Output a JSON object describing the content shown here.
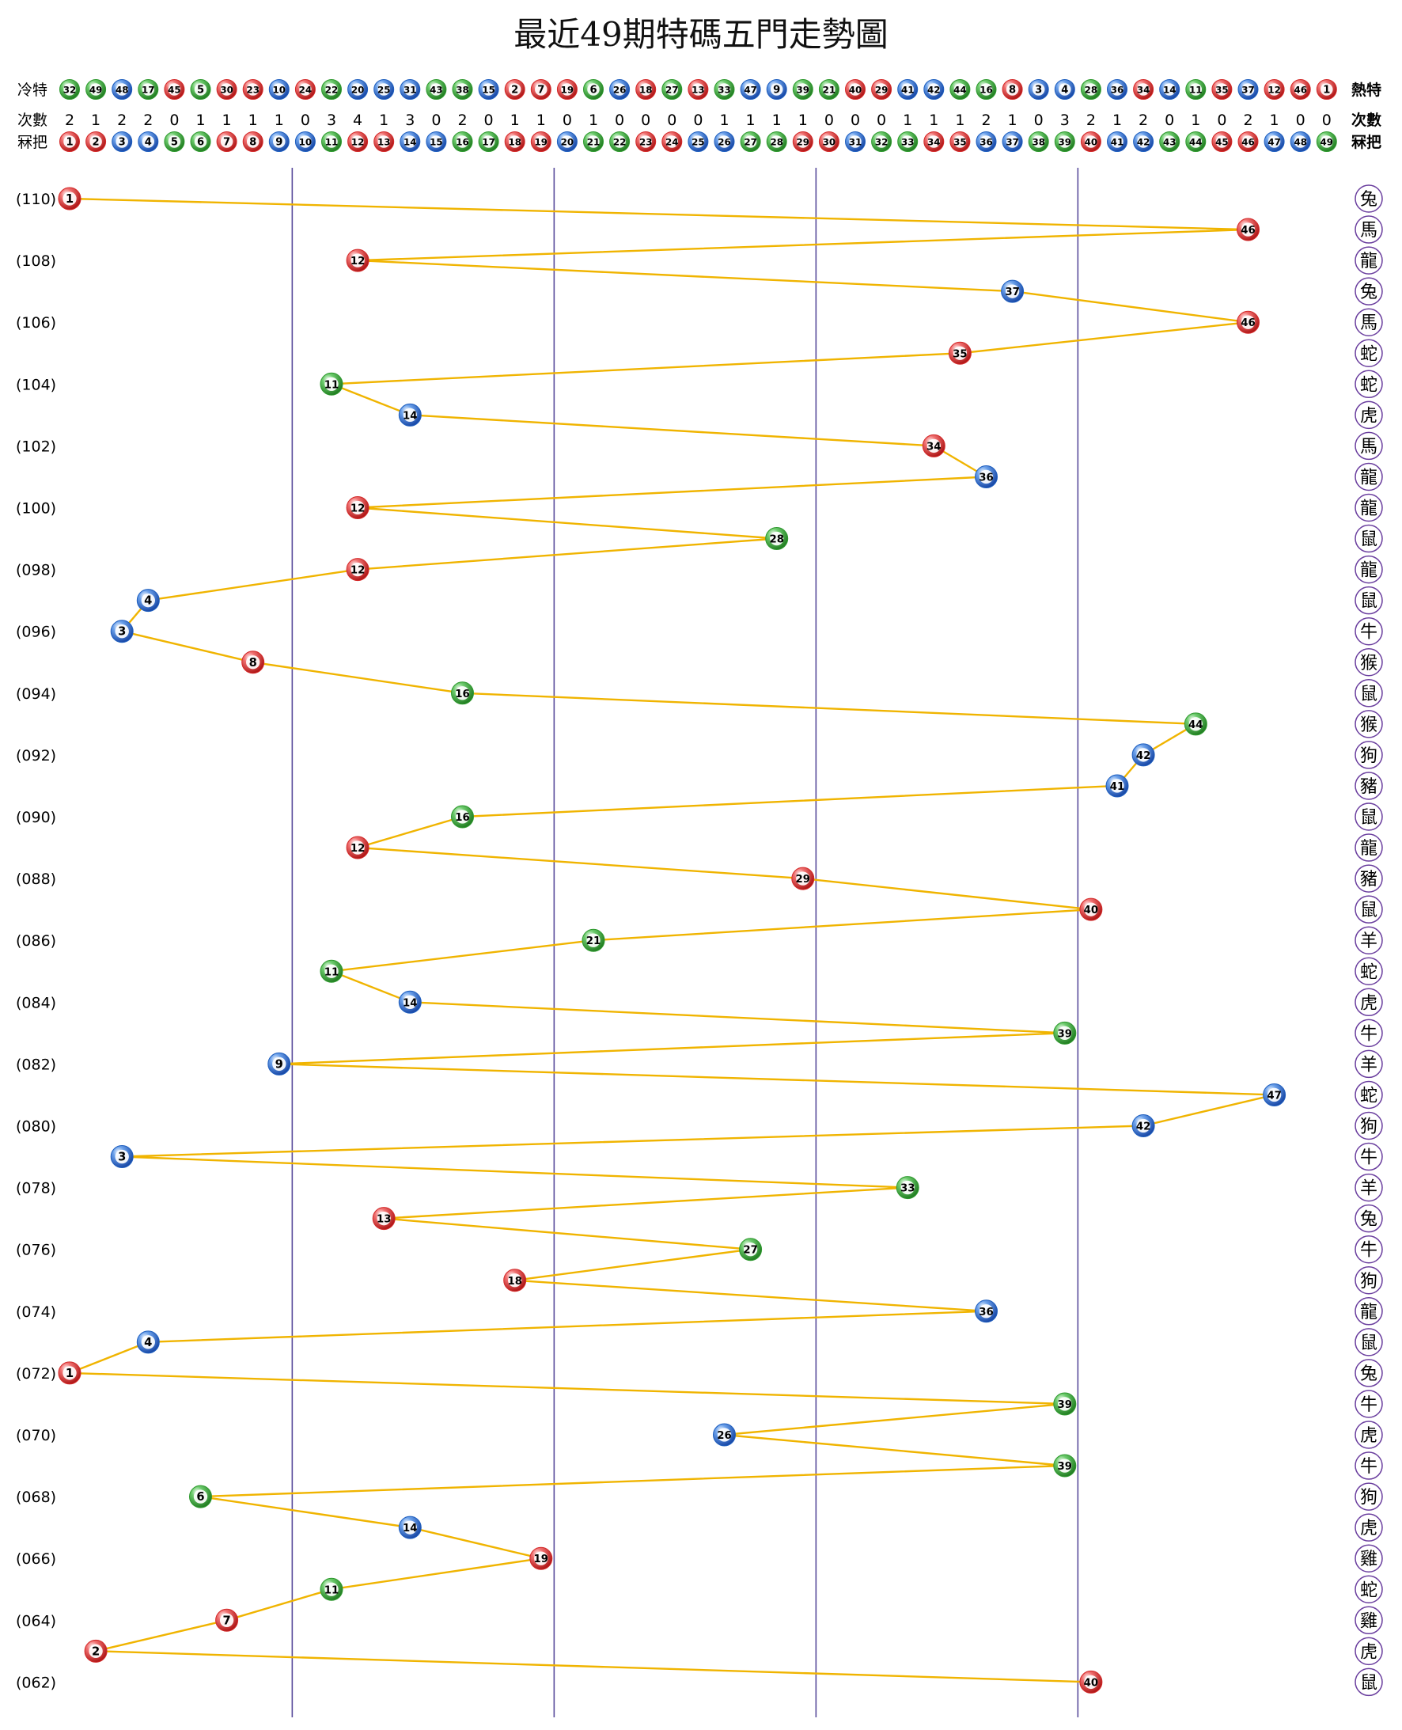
{
  "chart_data": {
    "type": "line",
    "title": "最近49期特碼五門走勢圖",
    "row_labels": {
      "cold_left": "冷特",
      "hot_right": "熱特",
      "count_left": "次數",
      "count_right": "次數",
      "number_left": "冧把",
      "number_right": "冧把"
    },
    "cold_hot_order": [
      32,
      49,
      48,
      17,
      45,
      5,
      30,
      23,
      10,
      24,
      22,
      20,
      25,
      31,
      43,
      38,
      15,
      2,
      7,
      19,
      6,
      26,
      18,
      27,
      13,
      33,
      47,
      9,
      39,
      21,
      40,
      29,
      41,
      42,
      44,
      16,
      8,
      3,
      4,
      28,
      36,
      34,
      14,
      11,
      35,
      37,
      12,
      46,
      1
    ],
    "counts": [
      2,
      1,
      2,
      2,
      0,
      1,
      1,
      1,
      1,
      0,
      3,
      4,
      1,
      3,
      0,
      2,
      0,
      1,
      1,
      0,
      1,
      0,
      0,
      0,
      0,
      1,
      1,
      1,
      1,
      0,
      0,
      0,
      1,
      1,
      1,
      2,
      1,
      0,
      3,
      2,
      1,
      2,
      0,
      1,
      0,
      2,
      1,
      0,
      0
    ],
    "numbers": [
      1,
      2,
      3,
      4,
      5,
      6,
      7,
      8,
      9,
      10,
      11,
      12,
      13,
      14,
      15,
      16,
      17,
      18,
      19,
      20,
      21,
      22,
      23,
      24,
      25,
      26,
      27,
      28,
      29,
      30,
      31,
      32,
      33,
      34,
      35,
      36,
      37,
      38,
      39,
      40,
      41,
      42,
      43,
      44,
      45,
      46,
      47,
      48,
      49
    ],
    "ball_colors": {
      "red": "#d42a2a",
      "blue": "#1f5fbf",
      "green": "#2f9a2f"
    },
    "color_groups": {
      "red": [
        1,
        2,
        7,
        8,
        12,
        13,
        18,
        19,
        23,
        24,
        29,
        30,
        34,
        35,
        40,
        45,
        46
      ],
      "blue": [
        3,
        4,
        9,
        10,
        14,
        15,
        20,
        25,
        26,
        31,
        36,
        37,
        41,
        42,
        47,
        48
      ],
      "green": [
        5,
        6,
        11,
        16,
        17,
        21,
        22,
        27,
        28,
        32,
        33,
        38,
        39,
        43,
        44,
        49
      ]
    },
    "gate_boundaries": [
      9.5,
      19.5,
      29.5,
      39.5
    ],
    "line_color": "#f0b400",
    "grid_color": "#5a4c9c",
    "period_labels": [
      "(110)",
      "(108)",
      "(106)",
      "(104)",
      "(102)",
      "(100)",
      "(098)",
      "(096)",
      "(094)",
      "(092)",
      "(090)",
      "(088)",
      "(086)",
      "(084)",
      "(082)",
      "(080)",
      "(078)",
      "(076)",
      "(074)",
      "(072)",
      "(070)",
      "(068)",
      "(066)",
      "(064)",
      "(062)"
    ],
    "draws": [
      1,
      46,
      12,
      37,
      46,
      35,
      11,
      14,
      34,
      36,
      12,
      28,
      12,
      4,
      3,
      8,
      16,
      44,
      42,
      41,
      16,
      12,
      29,
      40,
      21,
      11,
      14,
      39,
      9,
      47,
      42,
      3,
      33,
      13,
      27,
      18,
      36,
      4,
      1,
      39,
      26,
      39,
      6,
      14,
      19,
      11,
      7,
      2,
      40
    ],
    "zodiacs": [
      "兔",
      "馬",
      "龍",
      "兔",
      "馬",
      "蛇",
      "蛇",
      "虎",
      "馬",
      "龍",
      "龍",
      "鼠",
      "龍",
      "鼠",
      "牛",
      "猴",
      "鼠",
      "猴",
      "狗",
      "豬",
      "鼠",
      "龍",
      "豬",
      "鼠",
      "羊",
      "蛇",
      "虎",
      "牛",
      "羊",
      "蛇",
      "狗",
      "牛",
      "羊",
      "兔",
      "牛",
      "狗",
      "龍",
      "鼠",
      "兔",
      "牛",
      "虎",
      "牛",
      "狗",
      "虎",
      "雞",
      "蛇",
      "雞",
      "虎",
      "鼠"
    ]
  }
}
